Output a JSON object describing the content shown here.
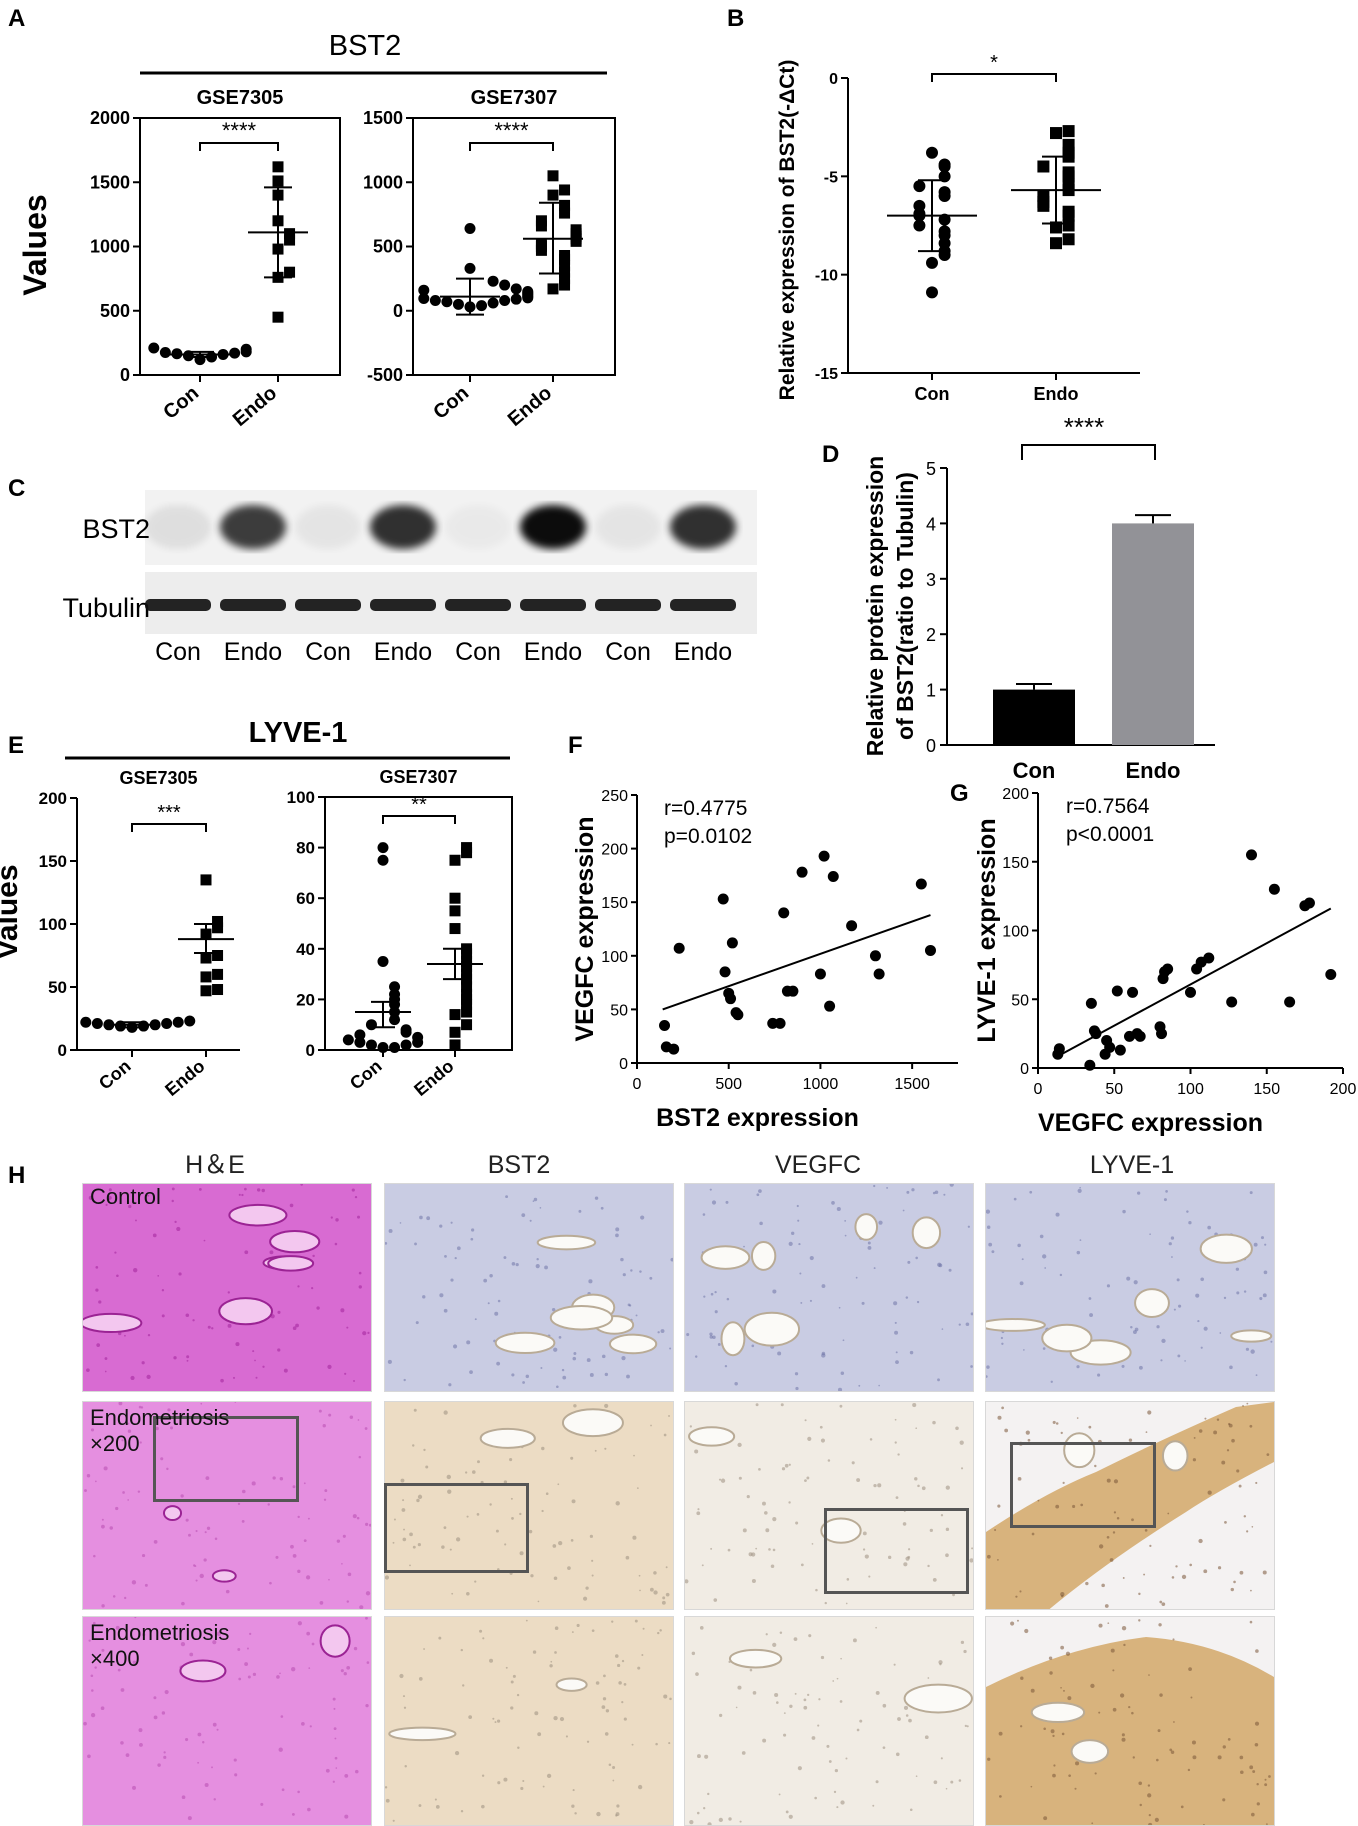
{
  "chart_data": [
    {
      "panel": "A",
      "type": "scatter",
      "group_title": "BST2",
      "title": "GSE7305",
      "ylabel": "Values",
      "categories": [
        "Con",
        "Endo"
      ],
      "ylim": [
        0,
        2000
      ],
      "yticks": [
        "0",
        "500",
        "1000",
        "1500",
        "2000"
      ],
      "significance": "****",
      "series": [
        {
          "values": [
            120,
            140,
            150,
            160,
            165,
            170,
            175,
            180,
            200,
            210
          ]
        },
        {
          "values": [
            450,
            760,
            800,
            980,
            1050,
            1100,
            1200,
            1400,
            1510,
            1620
          ]
        }
      ],
      "summary": [
        {
          "mean": 160,
          "low": 140,
          "high": 180
        },
        {
          "mean": 1110,
          "low": 760,
          "high": 1460
        }
      ]
    },
    {
      "panel": "A",
      "type": "scatter",
      "title": "GSE7307",
      "categories": [
        "Con",
        "Endo"
      ],
      "ylim": [
        -500,
        1500
      ],
      "yticks": [
        "-500",
        "0",
        "500",
        "1000",
        "1500"
      ],
      "significance": "****",
      "series": [
        {
          "values": [
            30,
            40,
            50,
            60,
            70,
            80,
            80,
            90,
            95,
            100,
            110,
            120,
            130,
            140,
            150,
            160,
            170,
            200,
            230,
            330,
            640
          ]
        },
        {
          "values": [
            170,
            200,
            250,
            300,
            350,
            400,
            430,
            470,
            500,
            520,
            540,
            560,
            580,
            600,
            630,
            660,
            700,
            760,
            820,
            900,
            940,
            1050
          ]
        }
      ],
      "summary": [
        {
          "mean": 110,
          "low": -30,
          "high": 250
        },
        {
          "mean": 560,
          "low": 290,
          "high": 840
        }
      ]
    },
    {
      "panel": "B",
      "type": "scatter",
      "ylabel": "Relative expression of BST2(-ΔCt)",
      "categories": [
        "Con",
        "Endo"
      ],
      "ylim": [
        -15,
        0
      ],
      "yticks": [
        "0",
        "-5",
        "-10",
        "-15"
      ],
      "significance": "*",
      "series": [
        {
          "values": [
            -3.8,
            -4.4,
            -4.5,
            -5.0,
            -5.5,
            -5.8,
            -6.0,
            -6.5,
            -6.9,
            -7.0,
            -7.2,
            -7.5,
            -7.8,
            -8.0,
            -8.4,
            -8.8,
            -9.0,
            -9.4,
            -10.9
          ]
        },
        {
          "values": [
            -2.7,
            -2.8,
            -3.4,
            -3.8,
            -4.0,
            -4.5,
            -4.8,
            -5.0,
            -5.4,
            -5.7,
            -6.0,
            -6.3,
            -6.5,
            -6.8,
            -7.0,
            -7.5,
            -7.6,
            -8.2,
            -8.4
          ]
        }
      ],
      "summary": [
        {
          "mean": -7.0,
          "low": -8.8,
          "high": -5.2
        },
        {
          "mean": -5.7,
          "low": -7.4,
          "high": -4.0
        }
      ]
    },
    {
      "panel": "D",
      "type": "bar",
      "ylabel": [
        "Relative protein expression",
        "of BST2(ratio to Tubulin)"
      ],
      "categories": [
        "Con",
        "Endo"
      ],
      "values": [
        1.0,
        4.0
      ],
      "errors": [
        0.1,
        0.15
      ],
      "colors": [
        "#000000",
        "#929297"
      ],
      "ylim": [
        0,
        5
      ],
      "yticks": [
        "0",
        "1",
        "2",
        "3",
        "4",
        "5"
      ],
      "significance": "****"
    },
    {
      "panel": "E",
      "type": "scatter",
      "group_title": "LYVE-1",
      "title": "GSE7305",
      "ylabel": "Values",
      "categories": [
        "Con",
        "Endo"
      ],
      "ylim": [
        0,
        200
      ],
      "yticks": [
        "0",
        "50",
        "100",
        "150",
        "200"
      ],
      "significance": "***",
      "series": [
        {
          "values": [
            18,
            19,
            19,
            20,
            20,
            21,
            21,
            22,
            22,
            23
          ]
        },
        {
          "values": [
            47,
            48,
            58,
            60,
            73,
            75,
            92,
            97,
            102,
            135
          ]
        }
      ],
      "summary": [
        {
          "mean": 20,
          "low": 18,
          "high": 22
        },
        {
          "mean": 88,
          "low": 77,
          "high": 100
        }
      ]
    },
    {
      "panel": "E",
      "type": "scatter",
      "title": "GSE7307",
      "categories": [
        "Con",
        "Endo"
      ],
      "ylim": [
        0,
        100
      ],
      "yticks": [
        "0",
        "20",
        "40",
        "60",
        "80",
        "100"
      ],
      "significance": "**",
      "series": [
        {
          "values": [
            1,
            1,
            2,
            2,
            3,
            3,
            4,
            5,
            6,
            7,
            8,
            10,
            12,
            15,
            18,
            20,
            22,
            25,
            35,
            75,
            80
          ]
        },
        {
          "values": [
            2,
            7,
            10,
            14,
            15,
            18,
            20,
            22,
            25,
            28,
            30,
            33,
            35,
            38,
            40,
            48,
            55,
            60,
            75,
            78,
            80
          ]
        }
      ],
      "summary": [
        {
          "mean": 15,
          "low": 9,
          "high": 19
        },
        {
          "mean": 34,
          "low": 28,
          "high": 40
        }
      ]
    },
    {
      "panel": "F",
      "type": "scatter",
      "xlabel": "BST2 expression",
      "ylabel": "VEGFC expression",
      "xlim": [
        0,
        1750
      ],
      "ylim": [
        0,
        250
      ],
      "xticks": [
        "0",
        "500",
        "1000",
        "1500"
      ],
      "yticks": [
        "0",
        "50",
        "100",
        "150",
        "200",
        "250"
      ],
      "annotation": [
        "r=0.4775",
        "p=0.0102"
      ],
      "x": [
        150,
        160,
        200,
        230,
        470,
        480,
        500,
        510,
        520,
        540,
        550,
        740,
        780,
        800,
        820,
        850,
        900,
        1000,
        1020,
        1050,
        1070,
        1170,
        1300,
        1320,
        1550,
        1600
      ],
      "y": [
        35,
        15,
        13,
        107,
        153,
        85,
        65,
        60,
        112,
        47,
        45,
        37,
        37,
        140,
        67,
        67,
        178,
        83,
        193,
        53,
        174,
        128,
        100,
        83,
        167,
        105
      ],
      "fit": {
        "x1": 140,
        "y1": 50,
        "x2": 1600,
        "y2": 138
      }
    },
    {
      "panel": "G",
      "type": "scatter",
      "xlabel": "VEGFC expression",
      "ylabel": "LYVE-1 expression",
      "xlim": [
        0,
        200
      ],
      "ylim": [
        0,
        200
      ],
      "xticks": [
        "0",
        "50",
        "100",
        "150",
        "200"
      ],
      "yticks": [
        "0",
        "50",
        "100",
        "150",
        "200"
      ],
      "annotation": [
        "r=0.7564",
        "p<0.0001"
      ],
      "x": [
        13,
        14,
        34,
        35,
        37,
        38,
        44,
        45,
        47,
        52,
        54,
        60,
        62,
        65,
        67,
        80,
        81,
        82,
        83,
        85,
        100,
        104,
        107,
        112,
        127,
        140,
        155,
        165,
        175,
        178,
        192
      ],
      "y": [
        10,
        14,
        2,
        47,
        27,
        25,
        10,
        20,
        15,
        56,
        13,
        23,
        55,
        25,
        23,
        30,
        25,
        65,
        70,
        72,
        55,
        72,
        77,
        80,
        48,
        155,
        130,
        48,
        118,
        120,
        68
      ],
      "fit": {
        "x1": 12,
        "y1": 8,
        "x2": 192,
        "y2": 116
      }
    }
  ],
  "panel_letters": [
    "A",
    "B",
    "C",
    "D",
    "E",
    "F",
    "G",
    "H"
  ],
  "blot": {
    "rows": [
      "BST2",
      "Tubulin"
    ],
    "lanes": [
      "Con",
      "Endo",
      "Con",
      "Endo",
      "Con",
      "Endo",
      "Con",
      "Endo"
    ],
    "bst2_intensity": [
      0.08,
      0.75,
      0.05,
      0.8,
      0.03,
      0.95,
      0.05,
      0.8
    ]
  },
  "histology": {
    "columns": [
      "H＆E",
      "BST2",
      "VEGFC",
      "LYVE-1"
    ],
    "row_labels": [
      [
        "Control"
      ],
      [
        "Endometriosis",
        "×200"
      ],
      [
        "Endometriosis",
        "×400"
      ]
    ]
  },
  "colors": {
    "he": "#d86bd2",
    "he_light": "#e58fe0",
    "ihc_neg": "#c9cce3",
    "ihc_pos": "#ecdcc4",
    "lyve_pos": "#d8b37d"
  }
}
